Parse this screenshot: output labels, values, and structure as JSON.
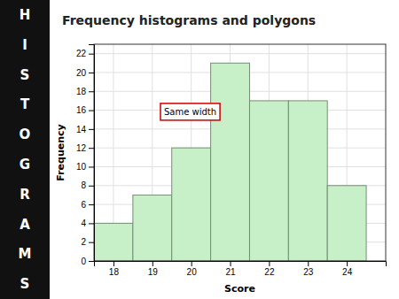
{
  "chart_data": {
    "type": "bar",
    "title": "Frequency histograms and polygons",
    "x": [
      18,
      19,
      20,
      21,
      22,
      23,
      24
    ],
    "values": [
      4,
      7,
      12,
      21,
      17,
      17,
      8
    ],
    "color": "#c8f0c8",
    "xlabel": "Score",
    "ylabel": "Frequency",
    "xlim": [
      17.5,
      25.0
    ],
    "xticks": [
      18,
      19,
      20,
      21,
      22,
      23,
      24
    ],
    "ylim": [
      0,
      23
    ],
    "yticks": [
      0,
      2,
      4,
      6,
      8,
      10,
      12,
      14,
      16,
      18,
      20,
      22
    ],
    "grid": true,
    "annotations": [
      {
        "text": "Same width",
        "x": 19.3,
        "y": 15.5
      }
    ],
    "side_text": [
      "H",
      "I",
      "S",
      "T",
      "O",
      "G",
      "R",
      "A",
      "M",
      "S"
    ]
  }
}
